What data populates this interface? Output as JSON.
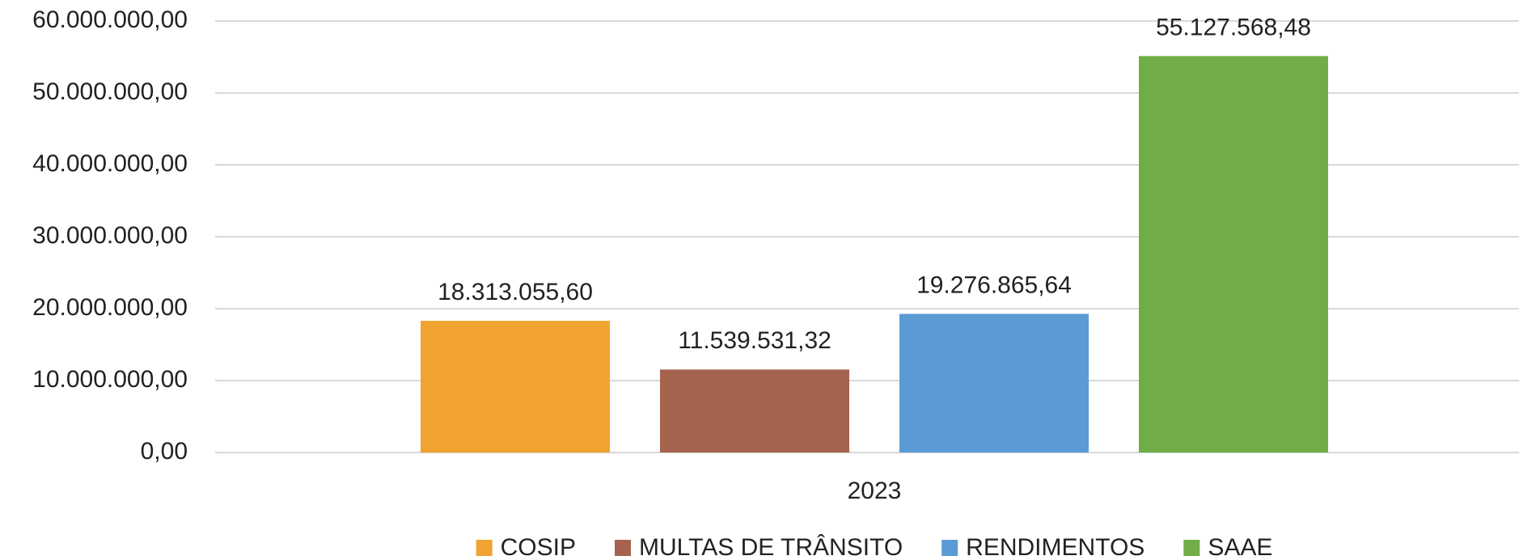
{
  "chart_data": {
    "type": "bar",
    "categories": [
      "2023"
    ],
    "series": [
      {
        "name": "COSIP",
        "color": "#f0a330",
        "values": [
          18313055.6
        ],
        "value_labels": [
          "18.313.055,60"
        ]
      },
      {
        "name": "MULTAS DE TRÂNSITO",
        "color": "#a5644e",
        "values": [
          11539531.32
        ],
        "value_labels": [
          "11.539.531,32"
        ]
      },
      {
        "name": "RENDIMENTOS",
        "color": "#5b9bd5",
        "values": [
          19276865.64
        ],
        "value_labels": [
          "19.276.865,64"
        ]
      },
      {
        "name": "SAAE",
        "color": "#70ad47",
        "values": [
          55127568.48
        ],
        "value_labels": [
          "55.127.568,48"
        ]
      }
    ],
    "ylim": [
      0,
      60000000
    ],
    "yticks": [
      {
        "value": 0,
        "label": "0,00"
      },
      {
        "value": 10000000,
        "label": "10.000.000,00"
      },
      {
        "value": 20000000,
        "label": "20.000.000,00"
      },
      {
        "value": 30000000,
        "label": "30.000.000,00"
      },
      {
        "value": 40000000,
        "label": "40.000.000,00"
      },
      {
        "value": 50000000,
        "label": "50.000.000,00"
      },
      {
        "value": 60000000,
        "label": "60.000.000,00"
      }
    ],
    "grid": true,
    "legend": "bottom"
  }
}
